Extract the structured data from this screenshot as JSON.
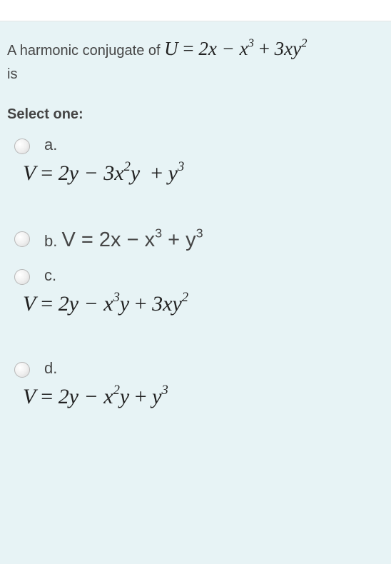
{
  "colors": {
    "panel_bg": "#e7f3f5",
    "text": "#464646",
    "math": "#222222",
    "border": "#e5e5e5"
  },
  "typography": {
    "body_font": "Arial, Helvetica, sans-serif",
    "math_font": "Times New Roman, Times, serif",
    "prompt_fontsize": 20,
    "math_fontsize_inline": 27,
    "math_fontsize_block": 30,
    "select_one_fontsize": 20,
    "option_letter_fontsize": 22
  },
  "question": {
    "prompt_pre": "A harmonic conjugate of ",
    "prompt_post": " is",
    "U_expr_html": "<span class='math-inline'>U <span class='upright'>=</span> 2x − x<sup>3</sup> <span class='upright'>+</span> 3xy<sup>2</sup></span>",
    "select_label": "Select one:"
  },
  "options": [
    {
      "letter": "a.",
      "layout": "multiline",
      "expr_html": "V <span class='upright'>=</span> 2y − 3x<sup>2</sup>y&nbsp; <span class='upright'>+</span> y<sup>3</sup>"
    },
    {
      "letter": "b.",
      "layout": "inline",
      "expr_html": "V <span class='upright'>=</span> 2x − x<sup>3</sup> <span class='upright'>+</span> y<sup>3</sup>"
    },
    {
      "letter": "c.",
      "layout": "multiline",
      "expr_html": "V <span class='upright'>=</span> 2y − x<sup>3</sup>y <span class='upright'>+</span> 3xy<sup>2</sup>"
    },
    {
      "letter": "d.",
      "layout": "multiline",
      "expr_html": "V <span class='upright'>=</span> 2y − x<sup>2</sup>y <span class='upright'>+</span> y<sup>3</sup>"
    }
  ]
}
